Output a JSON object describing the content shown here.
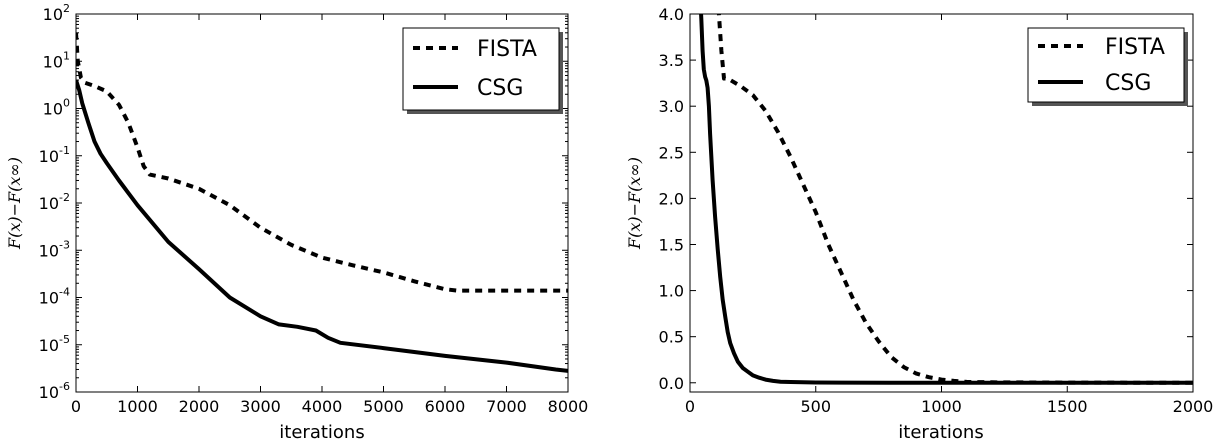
{
  "chart_data": [
    {
      "type": "line",
      "xlabel": "iterations",
      "ylabel": "F(x)−F(x∞)",
      "yscale": "log",
      "xlim": [
        0,
        8000
      ],
      "ylim": [
        1e-06,
        100
      ],
      "xticks": [
        "0",
        "1000",
        "2000",
        "3000",
        "4000",
        "5000",
        "6000",
        "7000",
        "8000"
      ],
      "yticks": [
        {
          "base": "10",
          "exp": "-6"
        },
        {
          "base": "10",
          "exp": "-5"
        },
        {
          "base": "10",
          "exp": "-4"
        },
        {
          "base": "10",
          "exp": "-3"
        },
        {
          "base": "10",
          "exp": "-2"
        },
        {
          "base": "10",
          "exp": "-1"
        },
        {
          "base": "10",
          "exp": "0"
        },
        {
          "base": "10",
          "exp": "1"
        },
        {
          "base": "10",
          "exp": "2"
        }
      ],
      "grid": false,
      "legend_position": "top-right",
      "series": [
        {
          "name": "FISTA",
          "style": "dashed",
          "x": [
            0,
            30,
            80,
            150,
            300,
            500,
            700,
            850,
            1000,
            1100,
            1200,
            1500,
            2000,
            2500,
            3000,
            3500,
            4000,
            4500,
            5000,
            5500,
            6000,
            6200,
            7000,
            8000
          ],
          "y": [
            40,
            10,
            4.5,
            3.5,
            3,
            2.3,
            1.2,
            0.5,
            0.15,
            0.06,
            0.04,
            0.033,
            0.02,
            0.009,
            0.003,
            0.0013,
            0.0007,
            0.00048,
            0.00034,
            0.00022,
            0.00015,
            0.00014,
            0.00014,
            0.00014
          ]
        },
        {
          "name": "CSG",
          "style": "solid",
          "x": [
            0,
            50,
            100,
            200,
            300,
            400,
            500,
            700,
            1000,
            1500,
            2000,
            2500,
            3000,
            3300,
            3600,
            3900,
            4100,
            4300,
            5000,
            6000,
            7000,
            7800,
            8000
          ],
          "y": [
            4,
            2.5,
            1.3,
            0.5,
            0.2,
            0.11,
            0.07,
            0.03,
            0.009,
            0.0015,
            0.0004,
            0.0001,
            4e-05,
            2.7e-05,
            2.4e-05,
            2e-05,
            1.4e-05,
            1.1e-05,
            8.5e-06,
            5.8e-06,
            4.2e-06,
            3e-06,
            2.8e-06
          ]
        }
      ]
    },
    {
      "type": "line",
      "xlabel": "iterations",
      "ylabel": "F(x)−F(x∞)",
      "yscale": "linear",
      "xlim": [
        0,
        2000
      ],
      "ylim": [
        -0.1,
        4.0
      ],
      "xticks": [
        "0",
        "500",
        "1000",
        "1500",
        "2000"
      ],
      "yticks": [
        "0.0",
        "0.5",
        "1.0",
        "1.5",
        "2.0",
        "2.5",
        "3.0",
        "3.5",
        "4.0"
      ],
      "grid": false,
      "legend_position": "top-right",
      "series": [
        {
          "name": "FISTA",
          "style": "dashed",
          "x": [
            100,
            115,
            125,
            135,
            150,
            200,
            250,
            300,
            350,
            400,
            450,
            500,
            550,
            600,
            650,
            700,
            750,
            800,
            850,
            900,
            950,
            1000,
            1050,
            1100,
            1200,
            1500,
            2000
          ],
          "y": [
            4.2,
            4.0,
            3.6,
            3.3,
            3.3,
            3.22,
            3.12,
            2.95,
            2.72,
            2.45,
            2.15,
            1.85,
            1.5,
            1.2,
            0.9,
            0.65,
            0.45,
            0.28,
            0.17,
            0.1,
            0.06,
            0.035,
            0.02,
            0.01,
            0.005,
            0.002,
            0.0
          ]
        },
        {
          "name": "CSG",
          "style": "solid",
          "x": [
            40,
            45,
            50,
            55,
            60,
            65,
            70,
            75,
            80,
            90,
            100,
            110,
            120,
            130,
            140,
            150,
            160,
            175,
            190,
            210,
            230,
            250,
            275,
            300,
            330,
            360,
            400,
            450,
            500,
            600,
            800,
            1000,
            1500,
            2000
          ],
          "y": [
            4.2,
            3.95,
            3.6,
            3.4,
            3.32,
            3.28,
            3.2,
            3.0,
            2.7,
            2.2,
            1.8,
            1.45,
            1.15,
            0.9,
            0.72,
            0.55,
            0.43,
            0.32,
            0.23,
            0.16,
            0.12,
            0.08,
            0.055,
            0.035,
            0.02,
            0.012,
            0.008,
            0.005,
            0.003,
            0.002,
            0.001,
            0.0,
            0.0,
            0.0
          ]
        }
      ]
    }
  ]
}
